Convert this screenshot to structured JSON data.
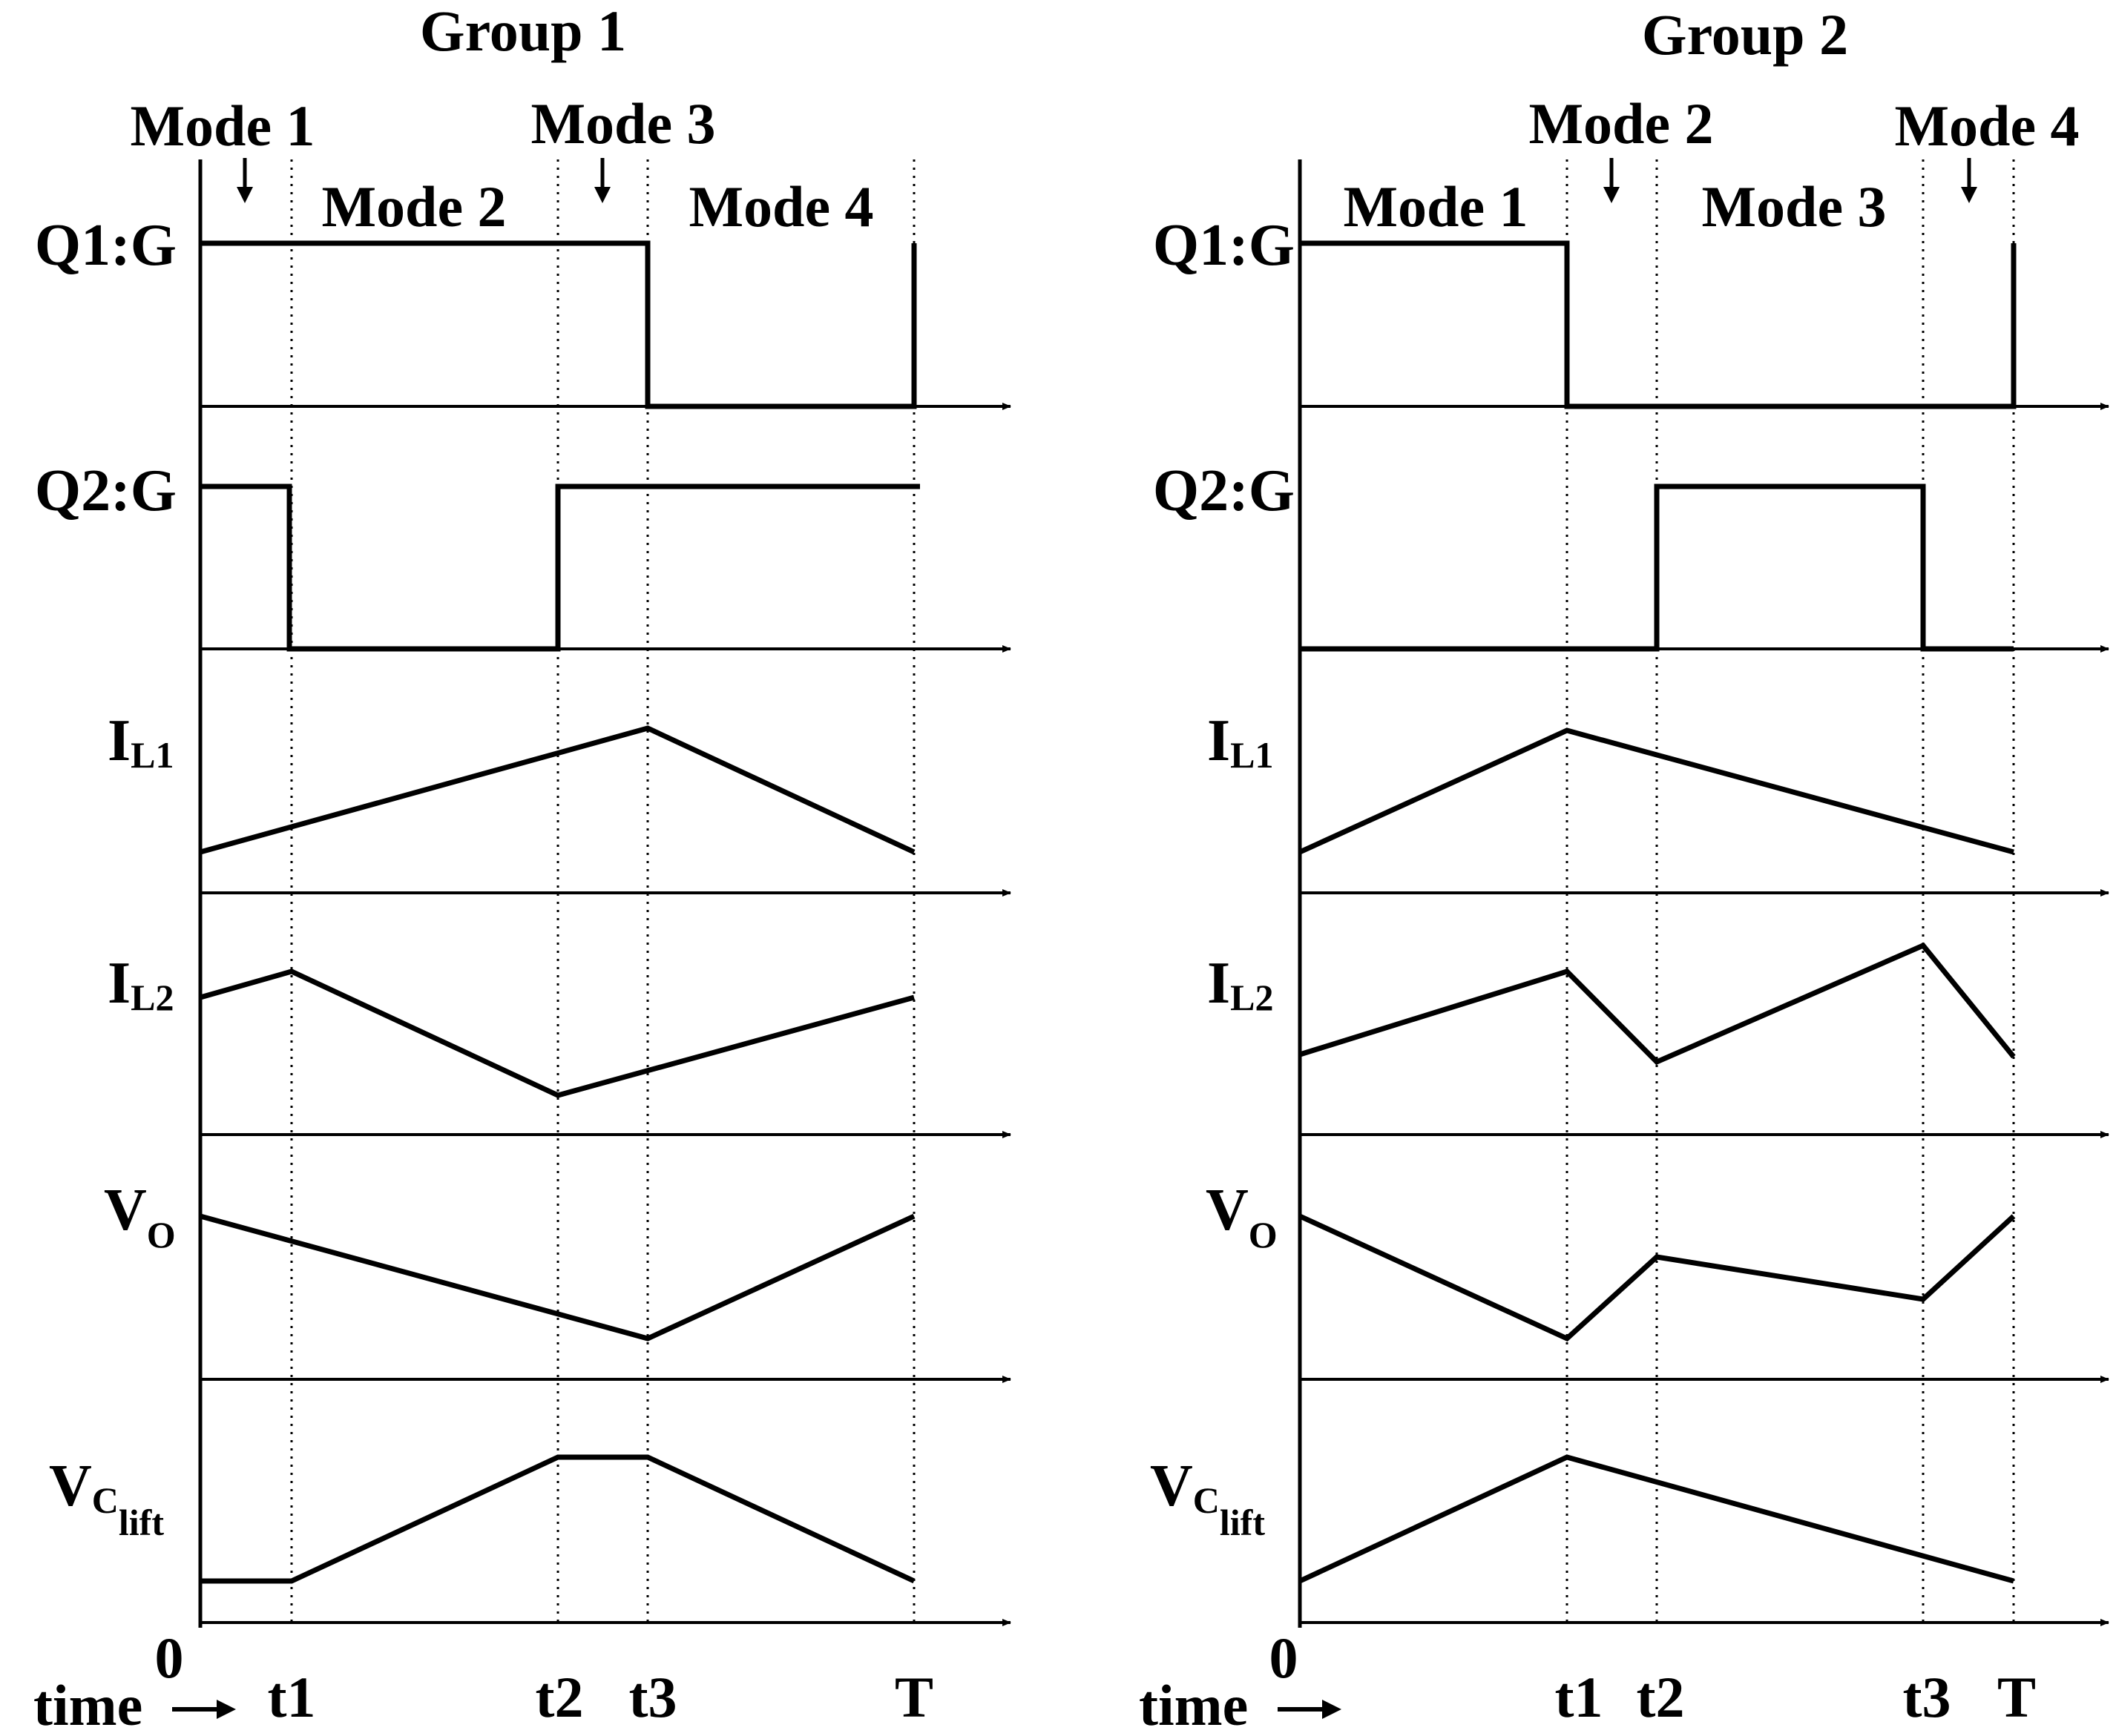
{
  "colors": {
    "ink": "#000000",
    "background": "#ffffff"
  },
  "time_marks": [
    "t1",
    "t2",
    "t3"
  ],
  "groups": [
    {
      "title": "Group 1",
      "origin_label": "0",
      "time_label": "time",
      "modes": [
        "Mode 1",
        "Mode 2",
        "Mode 3",
        "Mode 4"
      ],
      "signals": {
        "q1": {
          "name": "Q1:G"
        },
        "q2": {
          "name": "Q2:G"
        },
        "il1": {
          "main": "I",
          "sub": "L1"
        },
        "il2": {
          "main": "I",
          "sub": "L2"
        },
        "vo": {
          "main": "V",
          "sub": "O"
        },
        "vc": {
          "main": "V",
          "sub": "C",
          "subsub": "lift"
        }
      },
      "ticks": [
        "t1",
        "t2",
        "t3",
        "T"
      ]
    },
    {
      "title": "Group 2",
      "origin_label": "0",
      "time_label": "time",
      "modes": [
        "Mode 1",
        "Mode 2",
        "Mode 3",
        "Mode 4"
      ],
      "signals": {
        "q1": {
          "name": "Q1:G"
        },
        "q2": {
          "name": "Q2:G"
        },
        "il1": {
          "main": "I",
          "sub": "L1"
        },
        "il2": {
          "main": "I",
          "sub": "L2"
        },
        "vo": {
          "main": "V",
          "sub": "O"
        },
        "vc": {
          "main": "V",
          "sub": "C",
          "subsub": "lift"
        }
      },
      "ticks": [
        "t1",
        "t2",
        "t3",
        "T"
      ]
    }
  ]
}
